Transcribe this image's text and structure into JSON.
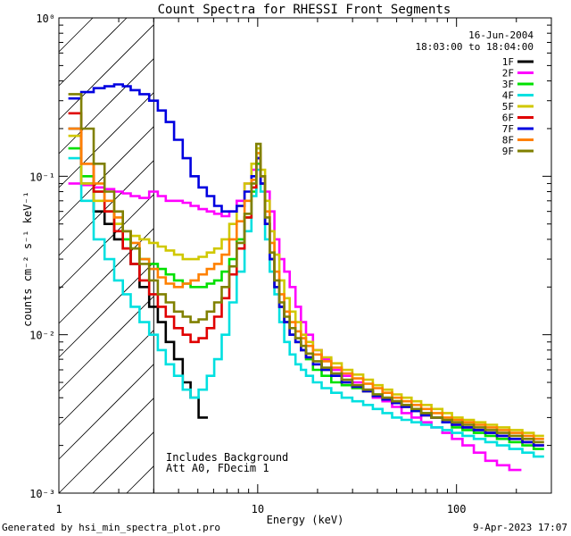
{
  "chart_data": {
    "type": "line",
    "title": "Count Spectra for RHESSI Front Segments",
    "xlabel": "Energy (keV)",
    "ylabel": "counts cm⁻² s⁻¹ keV⁻¹",
    "xscale": "log",
    "yscale": "log",
    "xlim": [
      1,
      300
    ],
    "ylim": [
      0.001,
      1
    ],
    "x_ticks": [
      {
        "value": 1,
        "label": "1"
      },
      {
        "value": 10,
        "label": "10"
      },
      {
        "value": 100,
        "label": "100"
      }
    ],
    "y_ticks": [
      {
        "value": 1,
        "label": "10⁰"
      },
      {
        "value": 0.1,
        "label": "10⁻¹"
      },
      {
        "value": 0.01,
        "label": "10⁻²"
      },
      {
        "value": 0.001,
        "label": "10⁻³"
      }
    ],
    "hatched_region": [
      1,
      3
    ],
    "annotations": {
      "date": "16-Jun-2004",
      "time_range": "18:03:00 to 18:04:00",
      "background_note": "Includes Background",
      "atten_note": "Att A0, FDecim 1"
    },
    "legend_position": "top-right",
    "series": [
      {
        "name": "1F",
        "color": "#000000",
        "x": [
          1.2,
          1.4,
          1.6,
          1.8,
          2.0,
          2.2,
          2.4,
          2.7,
          3.0,
          3.3,
          3.6,
          4.0,
          4.4,
          4.8,
          5.3
        ],
        "values": [
          0.2,
          0.09,
          0.06,
          0.05,
          0.04,
          0.035,
          0.028,
          0.02,
          0.015,
          0.012,
          0.009,
          0.007,
          0.005,
          0.004,
          0.003
        ]
      },
      {
        "name": "2F",
        "color": "#ff00ff",
        "x": [
          1.2,
          1.4,
          1.6,
          1.8,
          2.0,
          2.2,
          2.4,
          2.7,
          3.0,
          3.3,
          3.6,
          4.0,
          4.4,
          4.8,
          5.3,
          5.8,
          6.3,
          6.9,
          7.5,
          8.2,
          9.0,
          9.6,
          10.1,
          10.6,
          11.2,
          11.8,
          12.5,
          13.2,
          14,
          15,
          16,
          17,
          18,
          20,
          22,
          25,
          28,
          32,
          36,
          40,
          45,
          50,
          56,
          63,
          70,
          80,
          90,
          100,
          115,
          130,
          150,
          170,
          200
        ],
        "values": [
          0.09,
          0.088,
          0.085,
          0.083,
          0.08,
          0.078,
          0.075,
          0.073,
          0.08,
          0.075,
          0.07,
          0.07,
          0.068,
          0.065,
          0.062,
          0.06,
          0.058,
          0.056,
          0.06,
          0.07,
          0.09,
          0.11,
          0.13,
          0.1,
          0.08,
          0.06,
          0.04,
          0.03,
          0.025,
          0.02,
          0.015,
          0.012,
          0.01,
          0.008,
          0.007,
          0.006,
          0.0055,
          0.005,
          0.0045,
          0.004,
          0.0038,
          0.0035,
          0.0032,
          0.003,
          0.0028,
          0.0026,
          0.0024,
          0.0022,
          0.002,
          0.0018,
          0.0016,
          0.0015,
          0.0014
        ]
      },
      {
        "name": "3F",
        "color": "#00e000",
        "x": [
          1.2,
          1.4,
          1.6,
          1.8,
          2.0,
          2.2,
          2.4,
          2.7,
          3.0,
          3.3,
          3.6,
          4.0,
          4.4,
          4.8,
          5.3,
          5.8,
          6.3,
          6.9,
          7.5,
          8.2,
          9.0,
          9.6,
          10.1,
          10.6,
          11.2,
          11.8,
          12.5,
          13.2,
          14,
          15,
          16,
          17,
          18,
          20,
          22,
          25,
          28,
          32,
          36,
          40,
          45,
          50,
          56,
          63,
          70,
          80,
          90,
          100,
          115,
          130,
          150,
          170,
          200,
          230,
          260
        ],
        "values": [
          0.15,
          0.1,
          0.08,
          0.06,
          0.05,
          0.04,
          0.035,
          0.03,
          0.028,
          0.026,
          0.024,
          0.022,
          0.021,
          0.02,
          0.02,
          0.021,
          0.022,
          0.025,
          0.03,
          0.04,
          0.055,
          0.08,
          0.12,
          0.09,
          0.05,
          0.03,
          0.02,
          0.015,
          0.012,
          0.01,
          0.009,
          0.008,
          0.007,
          0.006,
          0.0055,
          0.005,
          0.0048,
          0.0046,
          0.0044,
          0.0042,
          0.004,
          0.0038,
          0.0036,
          0.0034,
          0.0032,
          0.003,
          0.0028,
          0.0026,
          0.0025,
          0.0024,
          0.0023,
          0.0022,
          0.0021,
          0.002,
          0.0019
        ]
      },
      {
        "name": "4F",
        "color": "#00e0e0",
        "x": [
          1.2,
          1.4,
          1.6,
          1.8,
          2.0,
          2.2,
          2.4,
          2.7,
          3.0,
          3.3,
          3.6,
          4.0,
          4.4,
          4.8,
          5.3,
          5.8,
          6.3,
          6.9,
          7.5,
          8.2,
          9.0,
          9.6,
          10.1,
          10.6,
          11.2,
          11.8,
          12.5,
          13.2,
          14,
          15,
          16,
          17,
          18,
          20,
          22,
          25,
          28,
          32,
          36,
          40,
          45,
          50,
          56,
          63,
          70,
          80,
          90,
          100,
          115,
          130,
          150,
          170,
          200,
          230,
          260
        ],
        "values": [
          0.13,
          0.07,
          0.04,
          0.03,
          0.022,
          0.018,
          0.015,
          0.012,
          0.01,
          0.008,
          0.0065,
          0.0055,
          0.0045,
          0.004,
          0.0045,
          0.0055,
          0.007,
          0.01,
          0.016,
          0.025,
          0.045,
          0.075,
          0.11,
          0.08,
          0.04,
          0.025,
          0.018,
          0.012,
          0.009,
          0.0075,
          0.0065,
          0.006,
          0.0055,
          0.005,
          0.0046,
          0.0043,
          0.004,
          0.0038,
          0.0036,
          0.0034,
          0.0032,
          0.003,
          0.0029,
          0.0028,
          0.0027,
          0.0026,
          0.0025,
          0.0024,
          0.0023,
          0.0022,
          0.0021,
          0.002,
          0.0019,
          0.0018,
          0.0017
        ]
      },
      {
        "name": "5F",
        "color": "#d0c800",
        "x": [
          1.2,
          1.4,
          1.6,
          1.8,
          2.0,
          2.2,
          2.4,
          2.7,
          3.0,
          3.3,
          3.6,
          4.0,
          4.4,
          4.8,
          5.3,
          5.8,
          6.3,
          6.9,
          7.5,
          8.2,
          9.0,
          9.6,
          10.1,
          10.6,
          11.2,
          11.8,
          12.5,
          13.2,
          14,
          15,
          16,
          17,
          18,
          20,
          22,
          25,
          28,
          32,
          36,
          40,
          45,
          50,
          56,
          63,
          70,
          80,
          90,
          100,
          115,
          130,
          150,
          170,
          200,
          230,
          260
        ],
        "values": [
          0.18,
          0.09,
          0.07,
          0.06,
          0.05,
          0.045,
          0.042,
          0.04,
          0.038,
          0.036,
          0.034,
          0.032,
          0.03,
          0.03,
          0.031,
          0.033,
          0.035,
          0.04,
          0.05,
          0.065,
          0.09,
          0.12,
          0.15,
          0.11,
          0.07,
          0.045,
          0.032,
          0.022,
          0.017,
          0.014,
          0.012,
          0.01,
          0.009,
          0.008,
          0.0072,
          0.0066,
          0.006,
          0.0056,
          0.0052,
          0.0048,
          0.0045,
          0.0042,
          0.004,
          0.0038,
          0.0036,
          0.0034,
          0.0032,
          0.003,
          0.0029,
          0.0028,
          0.0027,
          0.0026,
          0.0025,
          0.0024,
          0.0023
        ]
      },
      {
        "name": "6F",
        "color": "#e00000",
        "x": [
          1.2,
          1.4,
          1.6,
          1.8,
          2.0,
          2.2,
          2.4,
          2.7,
          3.0,
          3.3,
          3.6,
          4.0,
          4.4,
          4.8,
          5.3,
          5.8,
          6.3,
          6.9,
          7.5,
          8.2,
          9.0,
          9.6,
          10.1,
          10.6,
          11.2,
          11.8,
          12.5,
          13.2,
          14,
          15,
          16,
          17,
          18,
          20,
          22,
          25,
          28,
          32,
          36,
          40,
          45,
          50,
          56,
          63,
          70,
          80,
          90,
          100,
          115,
          130,
          150,
          170,
          200,
          230,
          260
        ],
        "values": [
          0.25,
          0.12,
          0.08,
          0.06,
          0.045,
          0.035,
          0.028,
          0.022,
          0.018,
          0.015,
          0.013,
          0.011,
          0.01,
          0.009,
          0.0095,
          0.011,
          0.013,
          0.017,
          0.024,
          0.035,
          0.055,
          0.085,
          0.13,
          0.09,
          0.05,
          0.03,
          0.02,
          0.015,
          0.012,
          0.01,
          0.009,
          0.008,
          0.0072,
          0.0065,
          0.006,
          0.0055,
          0.005,
          0.0047,
          0.0044,
          0.0041,
          0.0039,
          0.0037,
          0.0035,
          0.0033,
          0.0031,
          0.003,
          0.0028,
          0.0027,
          0.0026,
          0.0025,
          0.0024,
          0.0023,
          0.0022,
          0.0021,
          0.002
        ]
      },
      {
        "name": "7F",
        "color": "#0000e0",
        "x": [
          1.2,
          1.4,
          1.6,
          1.8,
          2.0,
          2.2,
          2.4,
          2.7,
          3.0,
          3.3,
          3.6,
          4.0,
          4.4,
          4.8,
          5.3,
          5.8,
          6.3,
          6.9,
          7.5,
          8.2,
          9.0,
          9.6,
          10.1,
          10.6,
          11.2,
          11.8,
          12.5,
          13.2,
          14,
          15,
          16,
          17,
          18,
          20,
          22,
          25,
          28,
          32,
          36,
          40,
          45,
          50,
          56,
          63,
          70,
          80,
          90,
          100,
          115,
          130,
          150,
          170,
          200,
          230,
          260
        ],
        "values": [
          0.31,
          0.34,
          0.36,
          0.37,
          0.38,
          0.37,
          0.35,
          0.33,
          0.3,
          0.26,
          0.22,
          0.17,
          0.13,
          0.1,
          0.085,
          0.075,
          0.065,
          0.06,
          0.06,
          0.065,
          0.08,
          0.1,
          0.13,
          0.09,
          0.05,
          0.03,
          0.02,
          0.015,
          0.012,
          0.01,
          0.009,
          0.008,
          0.0072,
          0.0065,
          0.006,
          0.0055,
          0.005,
          0.0047,
          0.0044,
          0.0041,
          0.0039,
          0.0037,
          0.0035,
          0.0033,
          0.0031,
          0.003,
          0.0028,
          0.0027,
          0.0026,
          0.0025,
          0.0024,
          0.0023,
          0.0022,
          0.0021,
          0.002
        ]
      },
      {
        "name": "8F",
        "color": "#ff8000",
        "x": [
          1.2,
          1.4,
          1.6,
          1.8,
          2.0,
          2.2,
          2.4,
          2.7,
          3.0,
          3.3,
          3.6,
          4.0,
          4.4,
          4.8,
          5.3,
          5.8,
          6.3,
          6.9,
          7.5,
          8.2,
          9.0,
          9.6,
          10.1,
          10.6,
          11.2,
          11.8,
          12.5,
          13.2,
          14,
          15,
          16,
          17,
          18,
          20,
          22,
          25,
          28,
          32,
          36,
          40,
          45,
          50,
          56,
          63,
          70,
          80,
          90,
          100,
          115,
          130,
          150,
          170,
          200,
          230,
          260
        ],
        "values": [
          0.2,
          0.12,
          0.09,
          0.07,
          0.055,
          0.045,
          0.038,
          0.03,
          0.026,
          0.023,
          0.021,
          0.02,
          0.021,
          0.022,
          0.024,
          0.026,
          0.028,
          0.032,
          0.04,
          0.052,
          0.07,
          0.095,
          0.14,
          0.1,
          0.06,
          0.038,
          0.025,
          0.018,
          0.014,
          0.012,
          0.0105,
          0.0095,
          0.0085,
          0.0075,
          0.0068,
          0.0062,
          0.0057,
          0.0053,
          0.0049,
          0.0046,
          0.0043,
          0.004,
          0.0038,
          0.0036,
          0.0034,
          0.0032,
          0.003,
          0.0029,
          0.0028,
          0.0027,
          0.0026,
          0.0025,
          0.0024,
          0.0023,
          0.0022
        ]
      },
      {
        "name": "9F",
        "color": "#808000",
        "x": [
          1.2,
          1.4,
          1.6,
          1.8,
          2.0,
          2.2,
          2.4,
          2.7,
          3.0,
          3.3,
          3.6,
          4.0,
          4.4,
          4.8,
          5.3,
          5.8,
          6.3,
          6.9,
          7.5,
          8.2,
          9.0,
          9.6,
          10.1,
          10.6,
          11.2,
          11.8,
          12.5,
          13.2,
          14,
          15,
          16,
          17,
          18,
          20,
          22,
          25,
          28,
          32,
          36,
          40,
          45,
          50,
          56,
          63,
          70,
          80,
          90,
          100,
          115,
          130,
          150,
          170,
          200,
          230,
          260
        ],
        "values": [
          0.33,
          0.2,
          0.12,
          0.08,
          0.06,
          0.045,
          0.035,
          0.028,
          0.022,
          0.018,
          0.016,
          0.014,
          0.013,
          0.012,
          0.0125,
          0.014,
          0.016,
          0.02,
          0.027,
          0.038,
          0.058,
          0.09,
          0.16,
          0.1,
          0.055,
          0.033,
          0.022,
          0.016,
          0.013,
          0.011,
          0.0095,
          0.0085,
          0.0076,
          0.0068,
          0.0062,
          0.0057,
          0.0052,
          0.0048,
          0.0045,
          0.0042,
          0.004,
          0.0038,
          0.0036,
          0.0034,
          0.0032,
          0.003,
          0.0029,
          0.0028,
          0.0027,
          0.0026,
          0.0025,
          0.0024,
          0.0023,
          0.0022,
          0.0021
        ]
      }
    ]
  },
  "footer": {
    "generated_by": "Generated by hsi_min_spectra_plot.pro",
    "timestamp": "9-Apr-2023 17:07"
  }
}
